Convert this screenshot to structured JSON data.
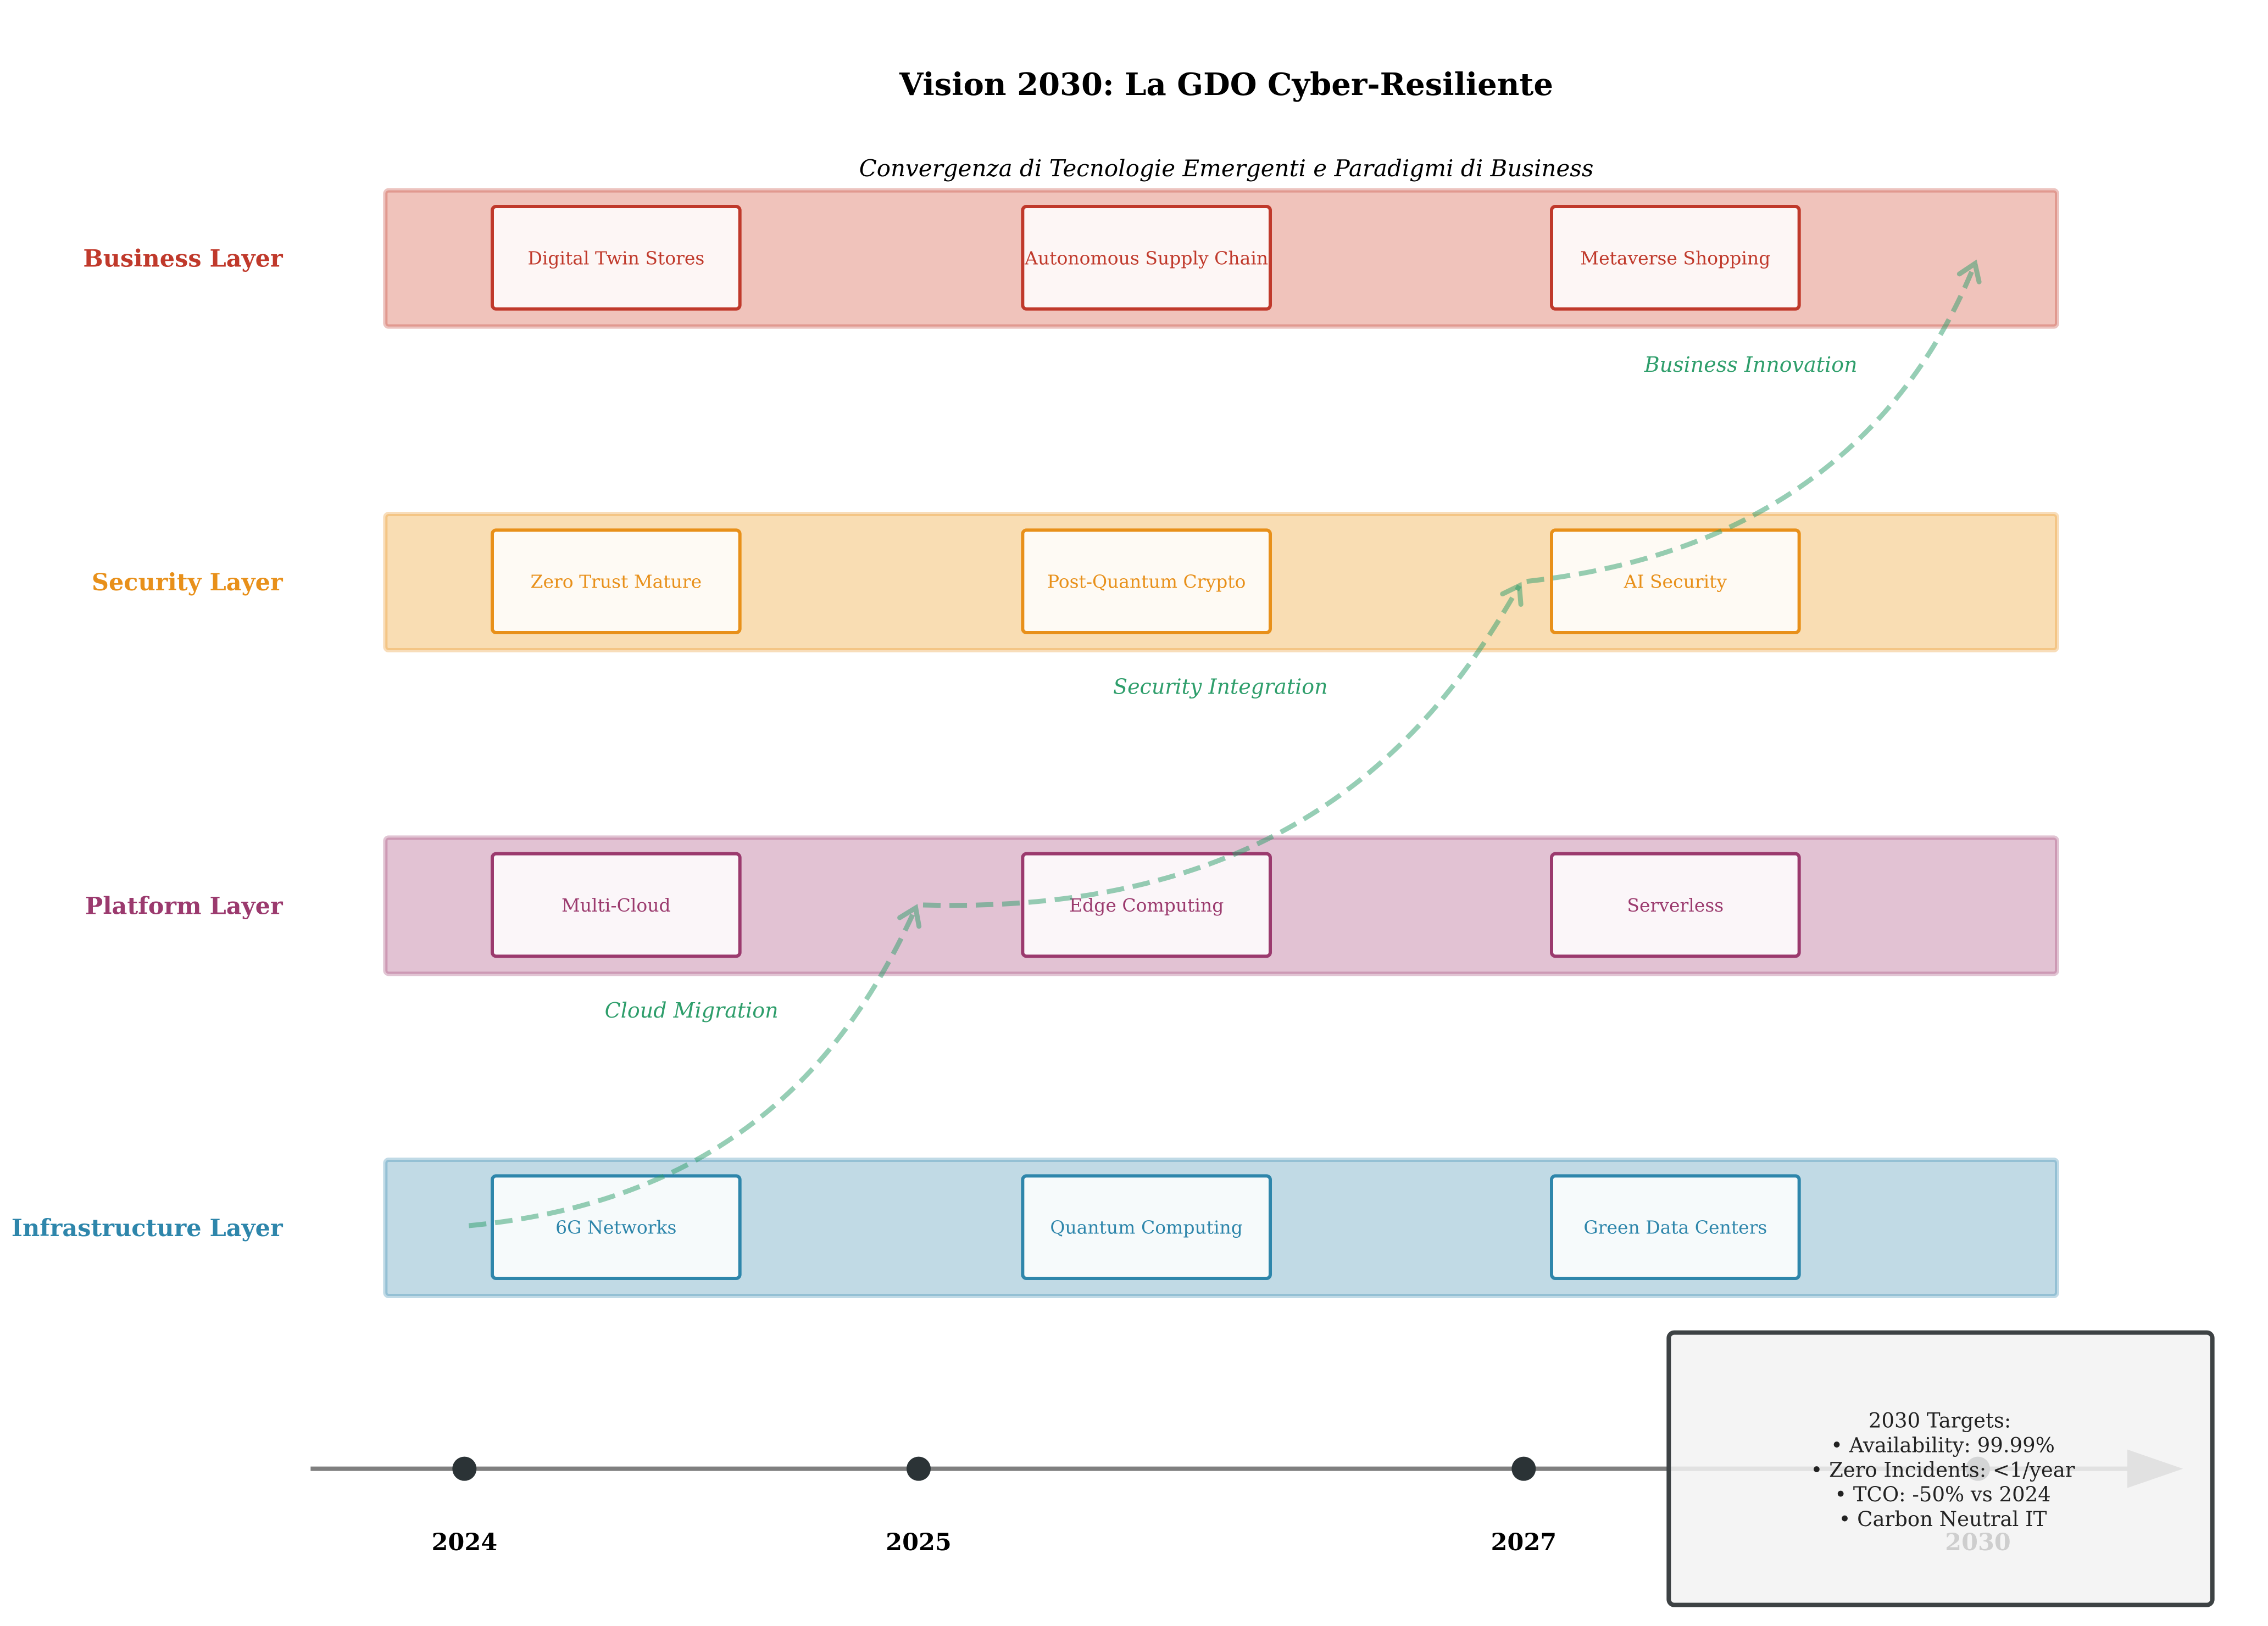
{
  "title": "Vision 2030: La GDO Cyber-Resiliente",
  "subtitle": "Convergenza di Tecnologie Emergenti e Paradigmi di Business",
  "layers": [
    {
      "name": "Business Layer",
      "color": "#c0392b",
      "band_fill": "#f0c3bb",
      "items": [
        "Digital Twin Stores",
        "Autonomous Supply Chain",
        "Metaverse Shopping"
      ]
    },
    {
      "name": "Security Layer",
      "color": "#e8901a",
      "band_fill": "#f9ddb3",
      "items": [
        "Zero Trust Mature",
        "Post-Quantum Crypto",
        "AI Security"
      ]
    },
    {
      "name": "Platform Layer",
      "color": "#9b3a6e",
      "band_fill": "#e2c2d3",
      "items": [
        "Multi-Cloud",
        "Edge Computing",
        "Serverless"
      ]
    },
    {
      "name": "Infrastructure Layer",
      "color": "#2e86ab",
      "band_fill": "#c1dae5",
      "items": [
        "6G Networks",
        "Quantum Computing",
        "Green Data Centers"
      ]
    }
  ],
  "transitions": [
    {
      "label": "Cloud Migration"
    },
    {
      "label": "Security Integration"
    },
    {
      "label": "Business Innovation"
    }
  ],
  "transition_color": "#2e9e6b",
  "timeline": {
    "years": [
      "2024",
      "2025",
      "2027",
      "2030"
    ]
  },
  "targets_box": {
    "heading": "2030 Targets:",
    "lines": [
      "• Availability: 99.99%",
      "• Zero Incidents: <1/year",
      "• TCO: -50% vs 2024",
      "• Carbon Neutral IT"
    ]
  }
}
